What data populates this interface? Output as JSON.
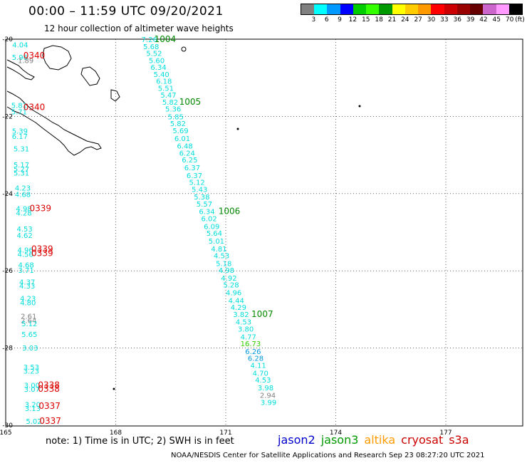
{
  "header": {
    "title": "00:00 – 11:59 UTC 09/20/2021",
    "subtitle": "12 hour collection of altimeter wave heights"
  },
  "legend": {
    "unit": "(ft)",
    "labels": [
      "3",
      "6",
      "9",
      "12",
      "15",
      "18",
      "21",
      "24",
      "27",
      "30",
      "33",
      "36",
      "39",
      "42",
      "45",
      "70"
    ],
    "colors": [
      "#808080",
      "#00ffff",
      "#0099ff",
      "#0000ff",
      "#00cc00",
      "#33ff00",
      "#009900",
      "#ffff00",
      "#ffcc00",
      "#ff9900",
      "#ff0000",
      "#cc0000",
      "#990000",
      "#660000",
      "#cc66cc",
      "#ff99ff",
      "#000000"
    ]
  },
  "axes": {
    "lat_labels": [
      "-20",
      "-22",
      "-24",
      "-26",
      "-28",
      "-30"
    ],
    "lon_labels": [
      "165",
      "168",
      "171",
      "174",
      "177"
    ]
  },
  "colors": {
    "cyan": "#00dddd",
    "blue": "#0099dd",
    "gray": "#808080",
    "green": "#2fcc00",
    "red": "#dd0000",
    "darkgreen": "#008800"
  },
  "tracks": {
    "left_values": [
      {
        "v": "4.04",
        "lon": 165.18,
        "lat": -20.14,
        "c": "cyan"
      },
      {
        "v": "5.96",
        "lon": 165.17,
        "lat": -20.46,
        "c": "cyan"
      },
      {
        "v": "1.89",
        "lon": 165.33,
        "lat": -20.54,
        "c": "gray"
      },
      {
        "v": "5.81",
        "lon": 165.15,
        "lat": -21.71,
        "c": "cyan"
      },
      {
        "v": "5.71",
        "lon": 165.15,
        "lat": -21.87,
        "c": "cyan"
      },
      {
        "v": "5.39",
        "lon": 165.17,
        "lat": -22.37,
        "c": "cyan"
      },
      {
        "v": "6.17",
        "lon": 165.17,
        "lat": -22.51,
        "c": "cyan"
      },
      {
        "v": "5.31",
        "lon": 165.21,
        "lat": -22.83,
        "c": "cyan"
      },
      {
        "v": "5.17",
        "lon": 165.21,
        "lat": -23.25,
        "c": "cyan"
      },
      {
        "v": "5.27",
        "lon": 165.21,
        "lat": -23.36,
        "c": "cyan"
      },
      {
        "v": "5.31",
        "lon": 165.21,
        "lat": -23.46,
        "c": "cyan"
      },
      {
        "v": "4.23",
        "lon": 165.25,
        "lat": -23.85,
        "c": "cyan"
      },
      {
        "v": "4.68",
        "lon": 165.25,
        "lat": -24.01,
        "c": "cyan"
      },
      {
        "v": "4.98",
        "lon": 165.28,
        "lat": -24.38,
        "c": "cyan"
      },
      {
        "v": "4.28",
        "lon": 165.28,
        "lat": -24.49,
        "c": "cyan"
      },
      {
        "v": "4.53",
        "lon": 165.3,
        "lat": -24.91,
        "c": "cyan"
      },
      {
        "v": "4.62",
        "lon": 165.3,
        "lat": -25.07,
        "c": "cyan"
      },
      {
        "v": "4.96",
        "lon": 165.32,
        "lat": -25.45,
        "c": "cyan"
      },
      {
        "v": "4.56",
        "lon": 165.32,
        "lat": -25.56,
        "c": "cyan"
      },
      {
        "v": "4.68",
        "lon": 165.34,
        "lat": -25.84,
        "c": "cyan"
      },
      {
        "v": "3.71",
        "lon": 165.34,
        "lat": -25.98,
        "c": "cyan"
      },
      {
        "v": "4.37",
        "lon": 165.37,
        "lat": -26.28,
        "c": "cyan"
      },
      {
        "v": "4.33",
        "lon": 165.37,
        "lat": -26.38,
        "c": "cyan"
      },
      {
        "v": "4.23",
        "lon": 165.39,
        "lat": -26.71,
        "c": "cyan"
      },
      {
        "v": "4.80",
        "lon": 165.39,
        "lat": -26.82,
        "c": "cyan"
      },
      {
        "v": "2.61",
        "lon": 165.41,
        "lat": -27.17,
        "c": "gray"
      },
      {
        "v": "2.64",
        "lon": 165.41,
        "lat": -27.28,
        "c": "gray"
      },
      {
        "v": "5.12",
        "lon": 165.43,
        "lat": -27.36,
        "c": "cyan"
      },
      {
        "v": "5.65",
        "lon": 165.43,
        "lat": -27.64,
        "c": "cyan"
      },
      {
        "v": "3.03",
        "lon": 165.45,
        "lat": -27.99,
        "c": "cyan"
      },
      {
        "v": "3.53",
        "lon": 165.48,
        "lat": -28.49,
        "c": "cyan"
      },
      {
        "v": "3.23",
        "lon": 165.48,
        "lat": -28.59,
        "c": "cyan"
      },
      {
        "v": "3.00",
        "lon": 165.5,
        "lat": -28.96,
        "c": "cyan"
      },
      {
        "v": "3.07",
        "lon": 165.5,
        "lat": -29.06,
        "c": "cyan"
      },
      {
        "v": "3.20",
        "lon": 165.52,
        "lat": -29.46,
        "c": "cyan"
      },
      {
        "v": "3.13",
        "lon": 165.52,
        "lat": -29.56,
        "c": "cyan"
      },
      {
        "v": "5.02",
        "lon": 165.55,
        "lat": -29.89,
        "c": "cyan"
      }
    ],
    "left_times": [
      {
        "t": "0340",
        "lon": 165.48,
        "lat": -20.42
      },
      {
        "t": "0340",
        "lon": 165.48,
        "lat": -21.76
      },
      {
        "t": "0339",
        "lon": 165.65,
        "lat": -24.38
      },
      {
        "t": "0339",
        "lon": 165.7,
        "lat": -25.43
      },
      {
        "t": "0339",
        "lon": 165.7,
        "lat": -25.54
      },
      {
        "t": "0338",
        "lon": 165.88,
        "lat": -28.96
      },
      {
        "t": "0338",
        "lon": 165.88,
        "lat": -29.06
      },
      {
        "t": "0337",
        "lon": 165.9,
        "lat": -29.5
      },
      {
        "t": "0337",
        "lon": 165.92,
        "lat": -29.89
      }
    ],
    "right_values": [
      {
        "v": "7.26",
        "lon": 168.7,
        "lat": -20.0,
        "c": "cyan"
      },
      {
        "v": "5.68",
        "lon": 168.75,
        "lat": -20.18,
        "c": "cyan"
      },
      {
        "v": "5.52",
        "lon": 168.83,
        "lat": -20.36,
        "c": "cyan"
      },
      {
        "v": "5.60",
        "lon": 168.9,
        "lat": -20.54,
        "c": "cyan"
      },
      {
        "v": "6.34",
        "lon": 168.95,
        "lat": -20.72,
        "c": "cyan"
      },
      {
        "v": "5.40",
        "lon": 169.03,
        "lat": -20.9,
        "c": "cyan"
      },
      {
        "v": "6.18",
        "lon": 169.1,
        "lat": -21.08,
        "c": "cyan"
      },
      {
        "v": "5.51",
        "lon": 169.15,
        "lat": -21.26,
        "c": "cyan"
      },
      {
        "v": "5.47",
        "lon": 169.22,
        "lat": -21.44,
        "c": "cyan"
      },
      {
        "v": "5.82",
        "lon": 169.27,
        "lat": -21.62,
        "c": "cyan"
      },
      {
        "v": "5.36",
        "lon": 169.35,
        "lat": -21.8,
        "c": "cyan"
      },
      {
        "v": "5.85",
        "lon": 169.42,
        "lat": -22.0,
        "c": "cyan"
      },
      {
        "v": "5.82",
        "lon": 169.48,
        "lat": -22.18,
        "c": "cyan"
      },
      {
        "v": "5.69",
        "lon": 169.55,
        "lat": -22.36,
        "c": "cyan"
      },
      {
        "v": "6.01",
        "lon": 169.6,
        "lat": -22.56,
        "c": "cyan"
      },
      {
        "v": "6.48",
        "lon": 169.67,
        "lat": -22.76,
        "c": "cyan"
      },
      {
        "v": "6.24",
        "lon": 169.73,
        "lat": -22.94,
        "c": "cyan"
      },
      {
        "v": "6.25",
        "lon": 169.8,
        "lat": -23.12,
        "c": "cyan"
      },
      {
        "v": "6.37",
        "lon": 169.87,
        "lat": -23.32,
        "c": "cyan"
      },
      {
        "v": "6.37",
        "lon": 169.93,
        "lat": -23.52,
        "c": "cyan"
      },
      {
        "v": "5.12",
        "lon": 170.0,
        "lat": -23.7,
        "c": "cyan"
      },
      {
        "v": "5.43",
        "lon": 170.07,
        "lat": -23.88,
        "c": "cyan"
      },
      {
        "v": "5.38",
        "lon": 170.13,
        "lat": -24.08,
        "c": "cyan"
      },
      {
        "v": "5.57",
        "lon": 170.2,
        "lat": -24.26,
        "c": "cyan"
      },
      {
        "v": "6.34",
        "lon": 170.27,
        "lat": -24.46,
        "c": "cyan"
      },
      {
        "v": "6.02",
        "lon": 170.33,
        "lat": -24.64,
        "c": "cyan"
      },
      {
        "v": "6.09",
        "lon": 170.4,
        "lat": -24.84,
        "c": "cyan"
      },
      {
        "v": "5.64",
        "lon": 170.47,
        "lat": -25.02,
        "c": "cyan"
      },
      {
        "v": "5.01",
        "lon": 170.53,
        "lat": -25.22,
        "c": "cyan"
      },
      {
        "v": "4.81",
        "lon": 170.6,
        "lat": -25.42,
        "c": "cyan"
      },
      {
        "v": "4.53",
        "lon": 170.67,
        "lat": -25.6,
        "c": "cyan"
      },
      {
        "v": "5.18",
        "lon": 170.73,
        "lat": -25.8,
        "c": "cyan"
      },
      {
        "v": "4.98",
        "lon": 170.8,
        "lat": -25.98,
        "c": "cyan"
      },
      {
        "v": "4.92",
        "lon": 170.87,
        "lat": -26.18,
        "c": "cyan"
      },
      {
        "v": "5.28",
        "lon": 170.93,
        "lat": -26.36,
        "c": "cyan"
      },
      {
        "v": "4.96",
        "lon": 171.0,
        "lat": -26.56,
        "c": "cyan"
      },
      {
        "v": "4.44",
        "lon": 171.07,
        "lat": -26.76,
        "c": "cyan"
      },
      {
        "v": "4.29",
        "lon": 171.13,
        "lat": -26.94,
        "c": "cyan"
      },
      {
        "v": "3.82",
        "lon": 171.2,
        "lat": -27.12,
        "c": "cyan"
      },
      {
        "v": "4.53",
        "lon": 171.27,
        "lat": -27.32,
        "c": "cyan"
      },
      {
        "v": "3.80",
        "lon": 171.33,
        "lat": -27.5,
        "c": "cyan"
      },
      {
        "v": "4.77",
        "lon": 171.4,
        "lat": -27.7,
        "c": "cyan"
      },
      {
        "v": "16.73",
        "lon": 171.4,
        "lat": -27.88,
        "c": "green"
      },
      {
        "v": "6.26",
        "lon": 171.53,
        "lat": -28.08,
        "c": "blue"
      },
      {
        "v": "6.28",
        "lon": 171.6,
        "lat": -28.26,
        "c": "blue"
      },
      {
        "v": "4.11",
        "lon": 171.67,
        "lat": -28.44,
        "c": "cyan"
      },
      {
        "v": "4.70",
        "lon": 171.73,
        "lat": -28.64,
        "c": "cyan"
      },
      {
        "v": "4.53",
        "lon": 171.8,
        "lat": -28.82,
        "c": "cyan"
      },
      {
        "v": "3.98",
        "lon": 171.87,
        "lat": -29.02,
        "c": "cyan"
      },
      {
        "v": "2.94",
        "lon": 171.93,
        "lat": -29.22,
        "c": "gray"
      },
      {
        "v": "3.99",
        "lon": 171.95,
        "lat": -29.4,
        "c": "cyan"
      }
    ],
    "right_times": [
      {
        "t": "1004",
        "lon": 169.05,
        "lat": -20.0
      },
      {
        "t": "1005",
        "lon": 169.73,
        "lat": -21.62
      },
      {
        "t": "1006",
        "lon": 170.8,
        "lat": -24.46
      },
      {
        "t": "1007",
        "lon": 171.7,
        "lat": -27.12
      }
    ]
  },
  "footer": {
    "note": "note: 1) Time is in UTC; 2) SWH is in feet",
    "satellites": [
      {
        "name": "jason2",
        "color": "#0000cc"
      },
      {
        "name": "jason3",
        "color": "#009900"
      },
      {
        "name": "altika",
        "color": "#ff9900"
      },
      {
        "name": "cryosat",
        "color": "#cc0000"
      },
      {
        "name": "s3a",
        "color": "#cc0000"
      }
    ],
    "credit": "NOAA/NESDIS Center for Satellite Applications and Research    Sep 23 08:27:20 UTC 2021"
  }
}
